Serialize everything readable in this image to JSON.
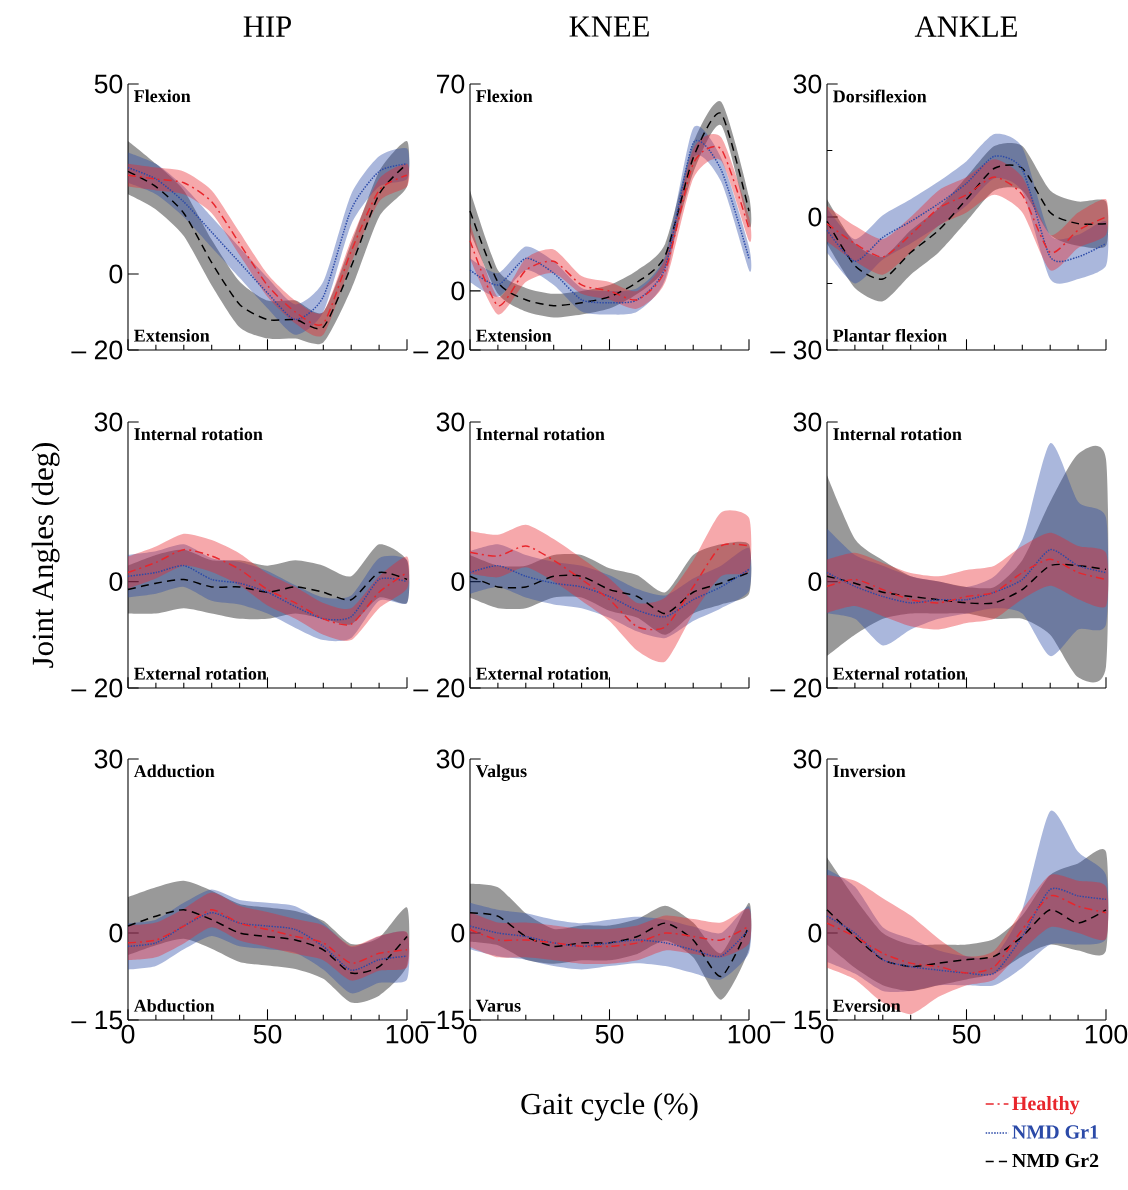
{
  "chart_data": [
    {
      "type": "line",
      "title": "HIP",
      "annotations": [
        "Flexion",
        "Extension"
      ],
      "x": [
        0,
        10,
        20,
        30,
        40,
        50,
        60,
        70,
        80,
        90,
        100
      ],
      "xlim": [
        0,
        100
      ],
      "xticks": [
        0,
        50,
        100
      ],
      "ylim": [
        -20,
        50
      ],
      "yticks": [
        50,
        0,
        {
          "value": -20,
          "label": "– 20"
        }
      ],
      "tick_labels": "y",
      "series": [
        {
          "color": "#000000",
          "line_style": "dashed",
          "values": [
            27,
            23,
            16,
            3,
            -8,
            -12,
            -12,
            -14,
            2,
            21,
            29
          ],
          "lower": [
            21,
            17,
            10,
            -3,
            -14,
            -17,
            -17,
            -18,
            -4,
            15,
            23
          ],
          "upper": [
            35,
            29,
            22,
            9,
            -2,
            -7,
            -7,
            -10,
            8,
            27,
            35
          ]
        },
        {
          "color": "#2b4aa8",
          "line_style": "dotted",
          "values": [
            28,
            25,
            19,
            11,
            3,
            -5,
            -12,
            -6,
            17,
            27,
            29
          ],
          "lower": [
            24,
            21,
            15,
            7,
            -1,
            -9,
            -16,
            -10,
            13,
            23,
            25
          ],
          "upper": [
            32,
            29,
            23,
            15,
            7,
            -1,
            -8,
            -2,
            21,
            31,
            33
          ]
        },
        {
          "color": "#e8262c",
          "line_style": "dashdot",
          "values": [
            26,
            25,
            24,
            19,
            8,
            -3,
            -10,
            -13,
            6,
            22,
            26
          ],
          "lower": [
            23,
            22,
            21,
            16,
            5,
            -6,
            -13,
            -16,
            3,
            19,
            23
          ],
          "upper": [
            29,
            28,
            27,
            22,
            11,
            0,
            -7,
            -10,
            9,
            25,
            29
          ]
        }
      ]
    },
    {
      "type": "line",
      "title": "KNEE",
      "annotations": [
        "Flexion",
        "Extension"
      ],
      "x": [
        0,
        10,
        20,
        30,
        40,
        50,
        60,
        70,
        80,
        90,
        100
      ],
      "xlim": [
        0,
        100
      ],
      "xticks": [
        0,
        50,
        100
      ],
      "ylim": [
        -20,
        70
      ],
      "yticks": [
        70,
        0,
        {
          "value": -20,
          "label": "– 20"
        }
      ],
      "tick_labels": "y",
      "series": [
        {
          "color": "#000000",
          "line_style": "dashed",
          "values": [
            27,
            3,
            -3,
            -5,
            -4,
            -2,
            3,
            12,
            45,
            60,
            27
          ],
          "lower": [
            20,
            -1,
            -7,
            -9,
            -8,
            -6,
            -1,
            8,
            40,
            56,
            22
          ],
          "upper": [
            34,
            7,
            1,
            -1,
            0,
            2,
            7,
            16,
            50,
            64,
            32
          ]
        },
        {
          "color": "#2b4aa8",
          "line_style": "dotted",
          "values": [
            7,
            2,
            11,
            6,
            -3,
            -4,
            -3,
            8,
            50,
            41,
            11
          ],
          "lower": [
            3,
            -2,
            7,
            2,
            -7,
            -8,
            -7,
            4,
            45,
            37,
            7
          ],
          "upper": [
            11,
            6,
            15,
            10,
            1,
            0,
            1,
            12,
            55,
            45,
            15
          ]
        },
        {
          "color": "#e8262c",
          "line_style": "dashdot",
          "values": [
            17,
            -5,
            7,
            10,
            2,
            0,
            -3,
            7,
            43,
            48,
            21
          ],
          "lower": [
            11,
            -8,
            3,
            6,
            -1,
            -3,
            -6,
            3,
            38,
            44,
            17
          ],
          "upper": [
            23,
            -2,
            11,
            14,
            5,
            3,
            0,
            11,
            48,
            52,
            25
          ]
        }
      ]
    },
    {
      "type": "line",
      "title": "ANKLE",
      "annotations": [
        "Dorsiflexion",
        "Plantar flexion"
      ],
      "x": [
        0,
        10,
        20,
        30,
        40,
        50,
        60,
        70,
        80,
        90,
        100
      ],
      "xlim": [
        0,
        100
      ],
      "xticks": [
        0,
        50,
        100
      ],
      "ylim": [
        -30,
        30
      ],
      "yticks": [
        30,
        0,
        {
          "value": -30,
          "label": "– 30"
        }
      ],
      "tick_labels": "y",
      "series": [
        {
          "color": "#000000",
          "line_style": "dashed",
          "values": [
            -1,
            -11,
            -14,
            -8,
            -3,
            4,
            11,
            11,
            1,
            -1.5,
            -1.5
          ],
          "lower": [
            -6,
            -16,
            -19,
            -13,
            -8,
            -1,
            6,
            6,
            -4,
            -6.5,
            -6.5
          ],
          "upper": [
            4,
            -6,
            -9,
            -3,
            2,
            9,
            16,
            16,
            6,
            3.5,
            3.5
          ]
        },
        {
          "color": "#2b4aa8",
          "line_style": "dotted",
          "values": [
            -3,
            -10,
            -4.6,
            -1,
            3,
            7.6,
            13.7,
            10.7,
            -9,
            -9,
            -6
          ],
          "lower": [
            -8,
            -15,
            -9.6,
            -6,
            -2,
            2.6,
            8.7,
            5.7,
            -14,
            -14,
            -11
          ],
          "upper": [
            2,
            -5,
            0.4,
            4,
            8,
            12.6,
            18.7,
            15.7,
            -4,
            -4,
            -1
          ]
        },
        {
          "color": "#e8262c",
          "line_style": "dashdot",
          "values": [
            -1.5,
            -6,
            -9,
            -4,
            2,
            5,
            9,
            5,
            -8,
            -3,
            0
          ],
          "lower": [
            -5.5,
            -10,
            -13,
            -8,
            -2,
            1,
            5,
            1,
            -12,
            -7,
            -4
          ],
          "upper": [
            2.5,
            -2,
            -5,
            0,
            6,
            9,
            13,
            9,
            -4,
            1,
            4
          ]
        }
      ]
    },
    {
      "type": "line",
      "ylabel": "Joint Angles (deg)",
      "annotations": [
        "Internal rotation",
        "External rotation"
      ],
      "x": [
        0,
        10,
        20,
        30,
        40,
        50,
        60,
        70,
        80,
        90,
        100
      ],
      "xlim": [
        0,
        100
      ],
      "xticks": [
        0,
        50,
        100
      ],
      "ylim": [
        -20,
        30
      ],
      "yticks": [
        30,
        0,
        {
          "value": -20,
          "label": "– 20"
        }
      ],
      "tick_labels": "y",
      "series": [
        {
          "color": "#000000",
          "line_style": "dashed",
          "values": [
            -1.5,
            -0.3,
            0.4,
            -1,
            -1,
            -2,
            -1,
            -2,
            -3.4,
            1.7,
            0.4
          ],
          "lower": [
            -6,
            -6,
            -5,
            -6,
            -7,
            -7,
            -6,
            -7,
            -8,
            -3,
            -4
          ],
          "upper": [
            3,
            5,
            6,
            4,
            4,
            3,
            4,
            3,
            1,
            7,
            4
          ]
        },
        {
          "color": "#2b4aa8",
          "line_style": "dotted",
          "values": [
            1,
            1.7,
            3,
            0.4,
            -0.3,
            -2,
            -4.7,
            -7,
            -6.6,
            0.4,
            0
          ],
          "lower": [
            -3,
            -2.3,
            -1,
            -3.6,
            -4.3,
            -6,
            -8.7,
            -11,
            -10.6,
            -3.6,
            -4
          ],
          "upper": [
            5,
            5.7,
            7,
            4.4,
            3.7,
            2,
            -0.7,
            -3,
            -2.6,
            4.4,
            4
          ]
        },
        {
          "color": "#e8262c",
          "line_style": "dashdot",
          "values": [
            1.7,
            3.6,
            6,
            4.8,
            2.3,
            -1.5,
            -4,
            -7,
            -8,
            -2,
            1.7
          ],
          "lower": [
            -1.3,
            0.6,
            3,
            1.8,
            -0.7,
            -4.5,
            -7,
            -10,
            -11,
            -5,
            -1.3
          ],
          "upper": [
            4.7,
            6.6,
            9,
            7.8,
            5.3,
            1.5,
            -1,
            -4,
            -5,
            1,
            4.7
          ]
        }
      ]
    },
    {
      "type": "line",
      "annotations": [
        "Internal rotation",
        "External rotation"
      ],
      "x": [
        0,
        10,
        20,
        30,
        40,
        50,
        60,
        70,
        80,
        90,
        100
      ],
      "xlim": [
        0,
        100
      ],
      "xticks": [
        0,
        50,
        100
      ],
      "ylim": [
        -20,
        30
      ],
      "yticks": [
        30,
        0,
        {
          "value": -20,
          "label": "– 20"
        }
      ],
      "tick_labels": "y",
      "series": [
        {
          "color": "#000000",
          "line_style": "dashed",
          "values": [
            1,
            -1,
            -1,
            1,
            1,
            -1.5,
            -2.8,
            -6,
            -2,
            -0.3,
            1.7
          ],
          "lower": [
            -3,
            -5,
            -5,
            -3,
            -3,
            -5.5,
            -6.8,
            -10,
            -6,
            -4.3,
            -2.3
          ],
          "upper": [
            5,
            3,
            3,
            5,
            5,
            2.5,
            1.2,
            -2,
            5,
            7,
            7
          ]
        },
        {
          "color": "#2b4aa8",
          "line_style": "dotted",
          "values": [
            1.7,
            3,
            1,
            -0.3,
            -1,
            -2.8,
            -5.4,
            -6.6,
            -3.4,
            -1,
            2.3
          ],
          "lower": [
            -2.3,
            -1,
            -3,
            -4.3,
            -5,
            -6.8,
            -9.4,
            -10.6,
            -7.4,
            -5,
            -1.7
          ],
          "upper": [
            5.7,
            7,
            5,
            3.7,
            3,
            1.2,
            -1.4,
            -2.6,
            0.6,
            3,
            6.3
          ]
        },
        {
          "color": "#e8262c",
          "line_style": "dashdot",
          "values": [
            5.5,
            4.8,
            6.7,
            4,
            0.4,
            -3.4,
            -8.5,
            -8.5,
            -1,
            6.7,
            6.7
          ],
          "lower": [
            1.5,
            0.8,
            2.7,
            0,
            -3.6,
            -7.4,
            -13,
            -15,
            -6,
            1,
            2
          ],
          "upper": [
            9.5,
            8.8,
            10.7,
            8,
            4.4,
            0.6,
            -4,
            -3,
            4,
            13,
            12
          ]
        }
      ]
    },
    {
      "type": "line",
      "annotations": [
        "Internal rotation",
        "External rotation"
      ],
      "x": [
        0,
        10,
        20,
        30,
        40,
        50,
        60,
        70,
        80,
        90,
        100
      ],
      "xlim": [
        0,
        100
      ],
      "xticks": [
        0,
        50,
        100
      ],
      "ylim": [
        -20,
        30
      ],
      "yticks": [
        30,
        0,
        {
          "value": -20,
          "label": "– 20"
        }
      ],
      "tick_labels": "y",
      "series": [
        {
          "color": "#000000",
          "line_style": "dashed",
          "values": [
            1,
            -0.3,
            -2,
            -2.8,
            -3.4,
            -4,
            -4,
            -1.5,
            3,
            3,
            2.3
          ],
          "lower": [
            -14,
            -10,
            -7,
            -6,
            -6,
            -6,
            -7,
            -7,
            -10,
            -18,
            -16
          ],
          "upper": [
            20,
            8,
            4,
            1,
            0,
            -1,
            -1,
            4,
            15,
            24,
            23
          ]
        },
        {
          "color": "#2b4aa8",
          "line_style": "dotted",
          "values": [
            1.7,
            -0.9,
            -2.8,
            -4,
            -3.4,
            -3.4,
            -2,
            0.4,
            6,
            3,
            1.7
          ],
          "lower": [
            -6,
            -7,
            -12,
            -9,
            -7,
            -6,
            -5,
            -6,
            -14,
            -9,
            -8
          ],
          "upper": [
            10,
            5,
            3,
            1,
            0,
            -1,
            1,
            8,
            26,
            15,
            12
          ]
        },
        {
          "color": "#e8262c",
          "line_style": "dashdot",
          "values": [
            -0.9,
            0.4,
            -1.5,
            -3.4,
            -4,
            -2.8,
            -2,
            1.7,
            4.2,
            1.7,
            0.4
          ],
          "lower": [
            -5.9,
            -4.6,
            -6.5,
            -8.4,
            -9,
            -7.8,
            -7,
            -3.3,
            -0.8,
            -3.3,
            -4.6
          ],
          "upper": [
            4.1,
            5.4,
            3.5,
            1.6,
            1,
            2.2,
            3,
            6.7,
            9.2,
            6.7,
            5.4
          ]
        }
      ]
    },
    {
      "type": "line",
      "annotations": [
        "Adduction",
        "Abduction"
      ],
      "x": [
        0,
        10,
        20,
        30,
        40,
        50,
        60,
        70,
        80,
        90,
        100
      ],
      "xlim": [
        0,
        100
      ],
      "xticks": [
        0,
        50,
        100
      ],
      "ylim": [
        -15,
        30
      ],
      "yticks": [
        30,
        0,
        {
          "value": -15,
          "label": "– 15"
        }
      ],
      "series": [
        {
          "color": "#000000",
          "line_style": "dashed",
          "values": [
            1.2,
            2.9,
            4,
            2.3,
            0,
            -0.6,
            -1.2,
            -2.9,
            -6.9,
            -5.8,
            -0.6
          ],
          "lower": [
            -3.8,
            -2.1,
            -1,
            -2.7,
            -5,
            -5.6,
            -6.2,
            -7.9,
            -12,
            -10.8,
            -5.6
          ],
          "upper": [
            6.2,
            7.9,
            9,
            7.3,
            5,
            4.4,
            3.8,
            2.1,
            -1.9,
            -0.8,
            4.4
          ]
        },
        {
          "color": "#2b4aa8",
          "line_style": "dotted",
          "values": [
            -2.3,
            -1.7,
            1.2,
            3.5,
            1.7,
            1.2,
            0.6,
            -2.3,
            -6.4,
            -4.6,
            -4
          ],
          "lower": [
            -6.3,
            -5.7,
            -2.8,
            -0.5,
            -2.3,
            -2.8,
            -3.4,
            -6.3,
            -10.4,
            -8.6,
            -8
          ],
          "upper": [
            1.7,
            2.3,
            5.2,
            7.5,
            5.7,
            5.2,
            4.6,
            1.7,
            -2.4,
            -0.6,
            0
          ]
        },
        {
          "color": "#e8262c",
          "line_style": "dashdot",
          "values": [
            -1.7,
            -1.2,
            1.2,
            4,
            1.7,
            0.6,
            -0.6,
            -1.7,
            -5.2,
            -3.5,
            -2.9
          ],
          "lower": [
            -4.7,
            -4.2,
            -1.8,
            1,
            -1.3,
            -2.4,
            -3.6,
            -4.7,
            -8.2,
            -6.5,
            -5.9
          ],
          "upper": [
            1.3,
            1.8,
            4.2,
            7,
            4.7,
            3.6,
            2.4,
            1.3,
            -2.2,
            -0.5,
            0.1
          ]
        }
      ]
    },
    {
      "type": "line",
      "xlabel": "Gait cycle (%)",
      "annotations": [
        "Valgus",
        "Varus"
      ],
      "x": [
        0,
        10,
        20,
        30,
        40,
        50,
        60,
        70,
        80,
        90,
        100
      ],
      "xlim": [
        0,
        100
      ],
      "xticks": [
        0,
        50,
        100
      ],
      "ylim": [
        -15,
        30
      ],
      "yticks": [
        30,
        0,
        {
          "value": -15,
          "label": "–15"
        }
      ],
      "series": [
        {
          "color": "#000000",
          "line_style": "dashed",
          "values": [
            3.5,
            2.9,
            -0.6,
            -2.3,
            -1.7,
            -1.7,
            -0.6,
            1.7,
            -1.2,
            -7.5,
            1.2
          ],
          "lower": [
            -1.5,
            -2.1,
            -4.6,
            -5.3,
            -4.7,
            -4.7,
            -3.6,
            -1.3,
            -4.2,
            -11.5,
            -2.8
          ],
          "upper": [
            8.5,
            7.9,
            3.4,
            0.7,
            1.3,
            1.3,
            2.4,
            4.7,
            1.8,
            -3.5,
            5.2
          ]
        },
        {
          "color": "#2b4aa8",
          "line_style": "dotted",
          "values": [
            1.2,
            0,
            -0.6,
            -1.7,
            -2.3,
            -1.7,
            -1.2,
            -1.7,
            -2.9,
            -4,
            0.6
          ],
          "lower": [
            -2.8,
            -4,
            -4.6,
            -5.7,
            -6.3,
            -5.7,
            -5.2,
            -5.7,
            -6.9,
            -8,
            -3.4
          ],
          "upper": [
            5.2,
            4,
            3.4,
            2.3,
            1.7,
            2.3,
            2.8,
            2.3,
            1.1,
            0,
            4.6
          ]
        },
        {
          "color": "#e8262c",
          "line_style": "dashdot",
          "values": [
            0.6,
            -1.2,
            -1.2,
            -1.7,
            -2.3,
            -2.3,
            -1.7,
            0,
            -0.6,
            -1.2,
            1.2
          ],
          "lower": [
            -2.4,
            -4.2,
            -4.2,
            -4.7,
            -5.3,
            -5.3,
            -4.7,
            -3,
            -3.6,
            -4.2,
            -1.8
          ],
          "upper": [
            3.6,
            1.8,
            1.8,
            1.3,
            0.7,
            0.7,
            1.3,
            3,
            2.4,
            1.8,
            4.2
          ]
        }
      ]
    },
    {
      "type": "line",
      "annotations": [
        "Inversion",
        "Eversion"
      ],
      "x": [
        0,
        10,
        20,
        30,
        40,
        50,
        60,
        70,
        80,
        90,
        100
      ],
      "xlim": [
        0,
        100
      ],
      "xticks": [
        0,
        50,
        100
      ],
      "ylim": [
        -15,
        30
      ],
      "yticks": [
        30,
        0,
        {
          "value": -15,
          "label": "– 15"
        }
      ],
      "legend": "bottom right",
      "series": [
        {
          "name": "NMD Gr2",
          "color": "#000000",
          "line_style": "dashed",
          "values": [
            4,
            -0.6,
            -4.6,
            -5.8,
            -5.2,
            -4.6,
            -4,
            -0.6,
            4,
            1.7,
            4
          ],
          "lower": [
            -2,
            -6,
            -9,
            -10,
            -9,
            -8,
            -7,
            -4,
            -2,
            -3,
            -3
          ],
          "upper": [
            13,
            6,
            0,
            -2,
            -2,
            -2,
            -1,
            3,
            10,
            12,
            14
          ]
        },
        {
          "name": "NMD Gr1",
          "color": "#2b4aa8",
          "line_style": "dotted",
          "values": [
            2.9,
            0,
            -4.6,
            -5.8,
            -6.4,
            -6.9,
            -6.9,
            -0.6,
            7.5,
            6.4,
            5.8
          ],
          "lower": [
            -5,
            -7,
            -10,
            -10,
            -9,
            -9,
            -9,
            -6,
            -2,
            -2,
            -1
          ],
          "upper": [
            11,
            8,
            1,
            -1,
            -3,
            -4,
            -4,
            4,
            21,
            14,
            10
          ]
        },
        {
          "name": "Healthy",
          "color": "#e8262c",
          "line_style": "dashdot",
          "values": [
            1.7,
            -0.6,
            -3.5,
            -5.2,
            -5.8,
            -6.9,
            -5.8,
            0.6,
            6.4,
            4.6,
            3.5
          ],
          "lower": [
            -6,
            -8,
            -12,
            -14,
            -11,
            -9,
            -8,
            -3,
            1,
            0,
            -1
          ],
          "upper": [
            10,
            9,
            6,
            3,
            -1,
            -4,
            -3,
            4,
            10,
            9,
            8
          ]
        }
      ]
    }
  ]
}
